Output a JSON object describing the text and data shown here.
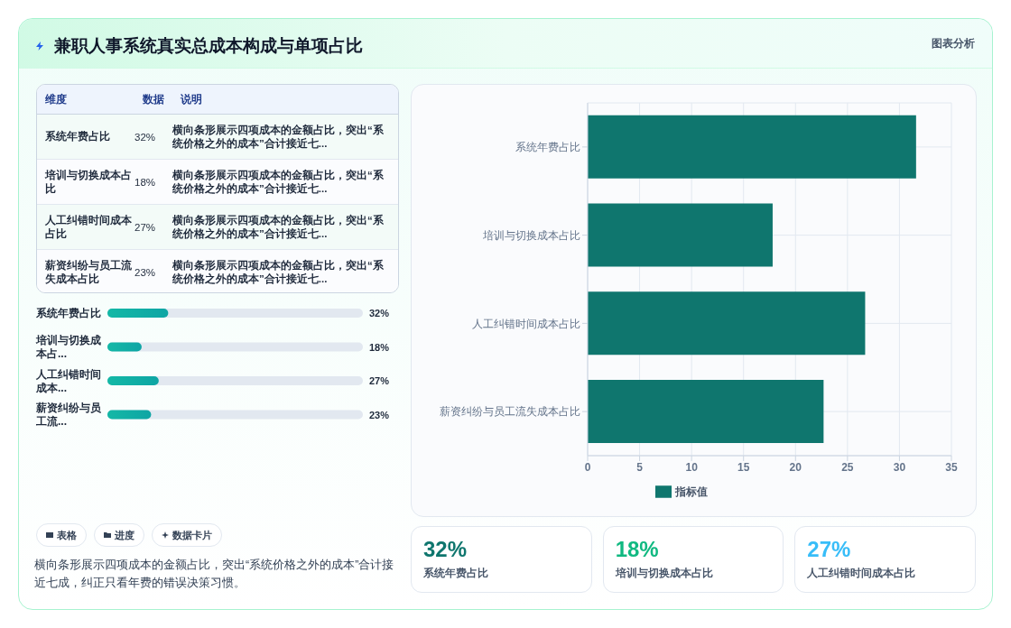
{
  "chart_data": [
    {
      "type": "other",
      "title": "兼职人事系统真实总成本构成与单项占比",
      "annotations": [
        "图表分析",
        "表格",
        "进度",
        "数据卡片",
        "横向条形展示四项成本的金额占比，突出“系统价格之外的成本”合计接近七成，纠正只看年费的错误决策习惯。"
      ]
    },
    {
      "type": "other",
      "categories": [
        "系统年费占比",
        "培训与切换成本占比",
        "人工纠错时间成本占比",
        "薪资纠纷与员工流失成本占比"
      ],
      "value_labels": [
        "32%",
        "18%",
        "27%",
        "23%"
      ],
      "annotations": [
        "维度",
        "数据",
        "说明",
        "横向条形展示四项成本的金额占比，突出“系统价格之外的成本”合计接近七...",
        "横向条形展示四项成本的金额占比，突出“系统价格之外的成本”合计接近七...",
        "横向条形展示四项成本的金额占比，突出“系统价格之外的成本”合计接近七...",
        "横向条形展示四项成本的金额占比，突出“系统价格之外的成本”合计接近七..."
      ]
    },
    {
      "type": "bar",
      "orientation": "horizontal",
      "categories": [
        "系统年费占比",
        "培训与切换成本占...",
        "人工纠错时间成本...",
        "薪资纠纷与员工流..."
      ],
      "values": [
        32,
        18,
        27,
        23
      ],
      "value_labels": [
        "32%",
        "18%",
        "27%",
        "23%"
      ],
      "color": "#14b8a6"
    },
    {
      "type": "bar",
      "orientation": "horizontal",
      "categories": [
        "系统年费占比",
        "培训与切换成本占比",
        "人工纠错时间成本占比",
        "薪资纠纷与员工流失成本占比"
      ],
      "series": [
        {
          "name": "指标值",
          "color": "#0f766e",
          "values": [
            31.6,
            17.8,
            26.7,
            22.7
          ]
        }
      ],
      "xlim": [
        0,
        35
      ],
      "xticks": [
        0,
        5,
        10,
        15,
        20,
        25,
        30,
        35
      ],
      "grid": true,
      "legend": "bottom"
    },
    {
      "type": "other",
      "categories": [
        "系统年费占比",
        "培训与切换成本占比",
        "人工纠错时间成本占比"
      ],
      "value_labels": [
        "32%",
        "18%",
        "27%"
      ]
    }
  ]
}
